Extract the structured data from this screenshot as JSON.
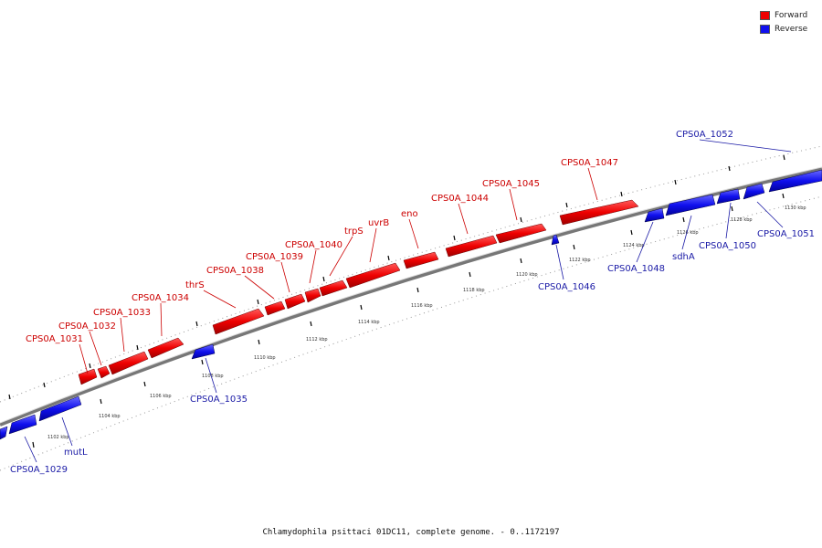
{
  "legend": {
    "forward": {
      "label": "Forward",
      "color": "#ee0000"
    },
    "reverse": {
      "label": "Reverse",
      "color": "#1010ee"
    }
  },
  "caption": "Chlamydophila psittaci 01DC11, complete genome. - 0..1172197",
  "ticks": [
    "1102 kbp",
    "1104 kbp",
    "1106 kbp",
    "1108 kbp",
    "1110 kbp",
    "1112 kbp",
    "1114 kbp",
    "1116 kbp",
    "1118 kbp",
    "1120 kbp",
    "1122 kbp",
    "1124 kbp",
    "1126 kbp",
    "1128 kbp",
    "1130 kbp"
  ],
  "forward_labels": [
    "CPS0A_1031",
    "CPS0A_1032",
    "CPS0A_1033",
    "CPS0A_1034",
    "thrS",
    "CPS0A_1038",
    "CPS0A_1039",
    "CPS0A_1040",
    "trpS",
    "uvrB",
    "eno",
    "CPS0A_1044",
    "CPS0A_1045",
    "CPS0A_1047"
  ],
  "reverse_labels": [
    "CPS0A_1029",
    "mutL",
    "CPS0A_1035",
    "CPS0A_1046",
    "CPS0A_1048",
    "sdhA",
    "CPS0A_1050",
    "CPS0A_1051",
    "CPS0A_1052"
  ]
}
